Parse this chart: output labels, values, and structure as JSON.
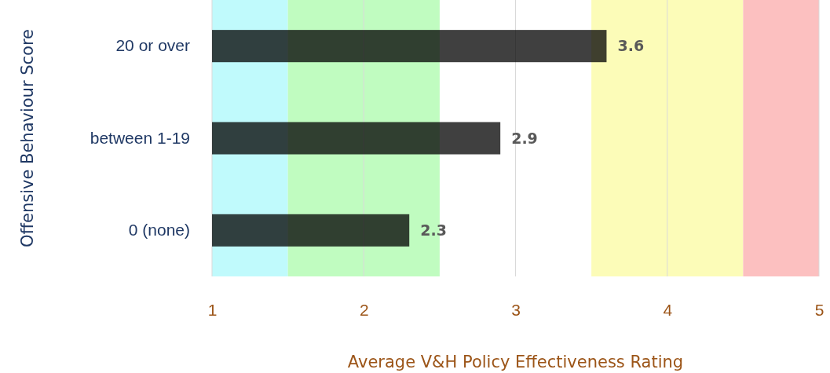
{
  "chart_data": {
    "type": "bar",
    "orientation": "horizontal",
    "xlabel": "Average V&H Policy Effectiveness  Rating",
    "ylabel": "Offensive Behaviour Score",
    "categories": [
      "20 or over",
      "between 1-19",
      "0 (none)"
    ],
    "values": [
      3.6,
      2.9,
      2.3
    ],
    "color": "#404040",
    "data_labels": true,
    "xlim": [
      1,
      5
    ],
    "xticks": [
      1,
      2,
      3,
      4,
      5
    ],
    "grid": "x",
    "bands": [
      {
        "axis": "x",
        "from": 1,
        "to": 1.5,
        "color": "#c0fafc"
      },
      {
        "axis": "x",
        "from": 1.5,
        "to": 2.5,
        "color": "#c0fcc0"
      },
      {
        "axis": "x",
        "from": 3.5,
        "to": 4.5,
        "color": "#fcfcb8"
      },
      {
        "axis": "x",
        "from": 4.5,
        "to": 5,
        "color": "#fcc0c0"
      }
    ]
  }
}
